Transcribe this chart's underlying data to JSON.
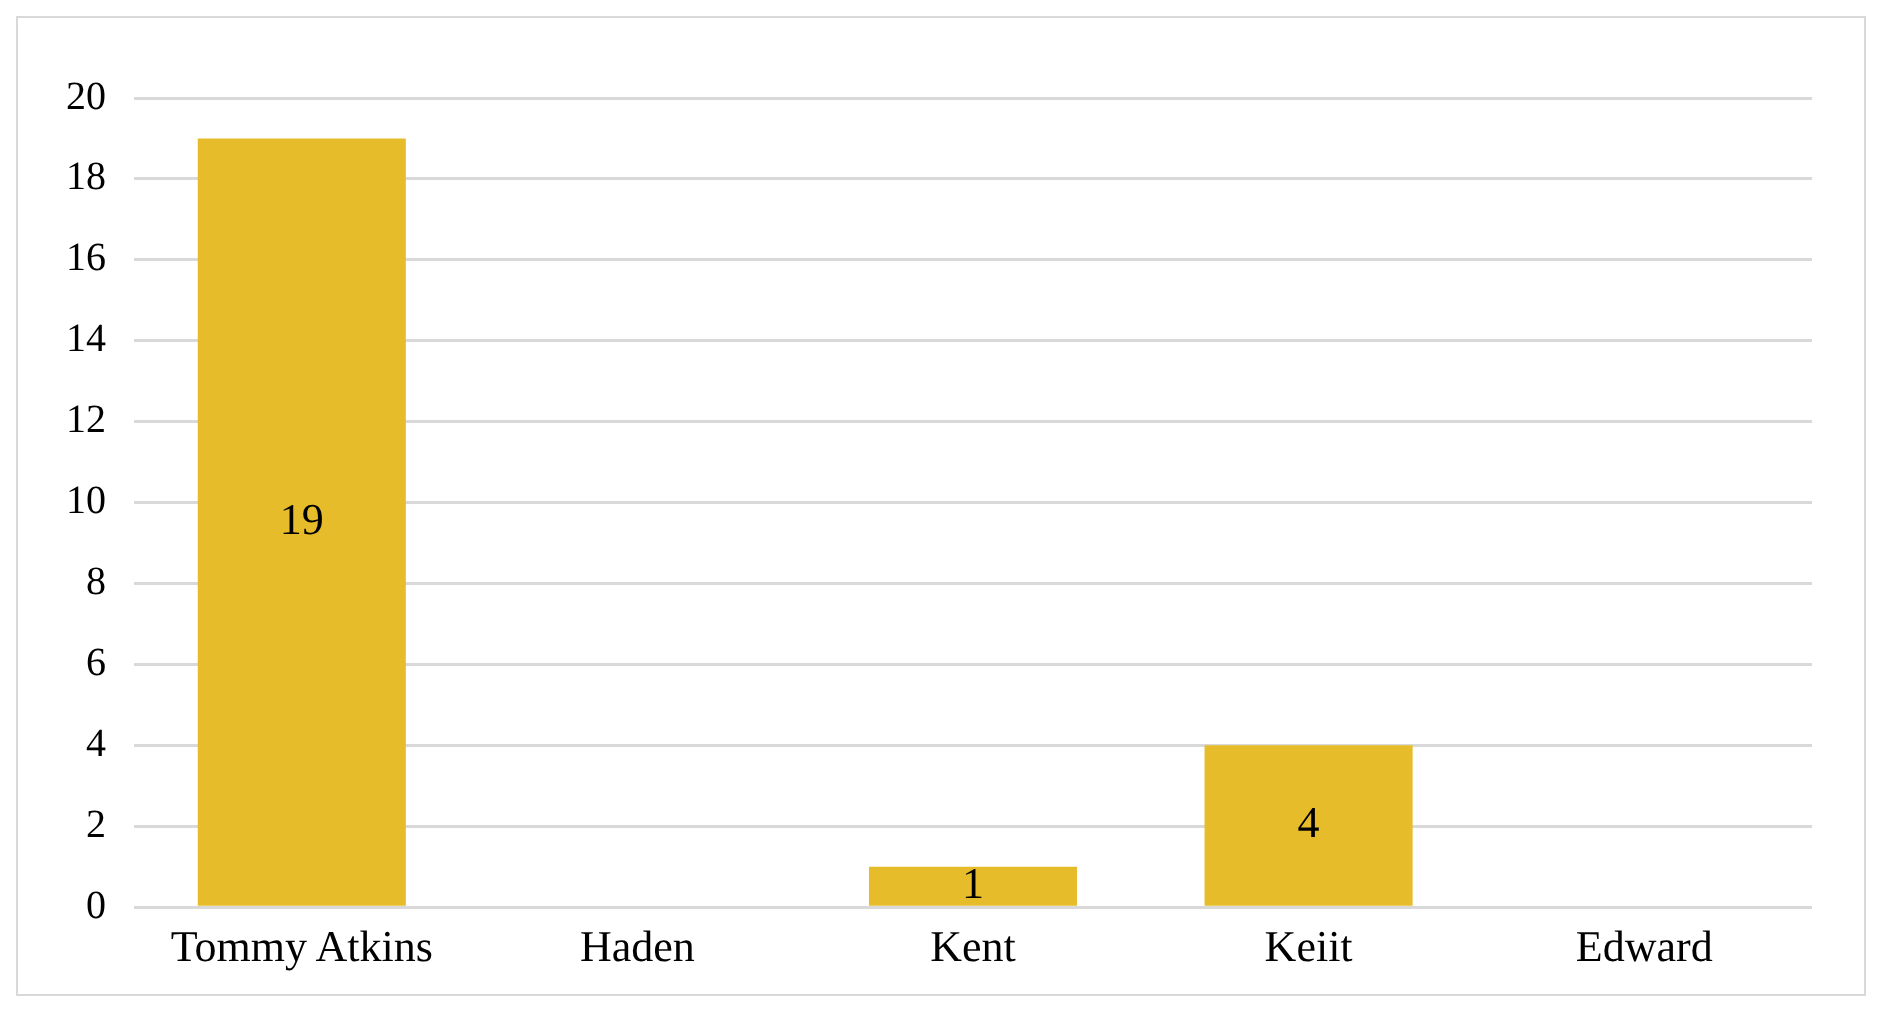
{
  "chart_data": {
    "type": "bar",
    "categories": [
      "Tommy Atkins",
      "Haden",
      "Kent",
      "Keiit",
      "Edward"
    ],
    "values": [
      19,
      0,
      1,
      4,
      0
    ],
    "color": "#e6bc2a",
    "value_labels": [
      "19",
      null,
      "1",
      "4",
      null
    ],
    "ylim": [
      0,
      20
    ],
    "yticks": [
      0,
      2,
      4,
      6,
      8,
      10,
      12,
      14,
      16,
      18,
      20
    ],
    "grid": "y",
    "legend": false
  }
}
